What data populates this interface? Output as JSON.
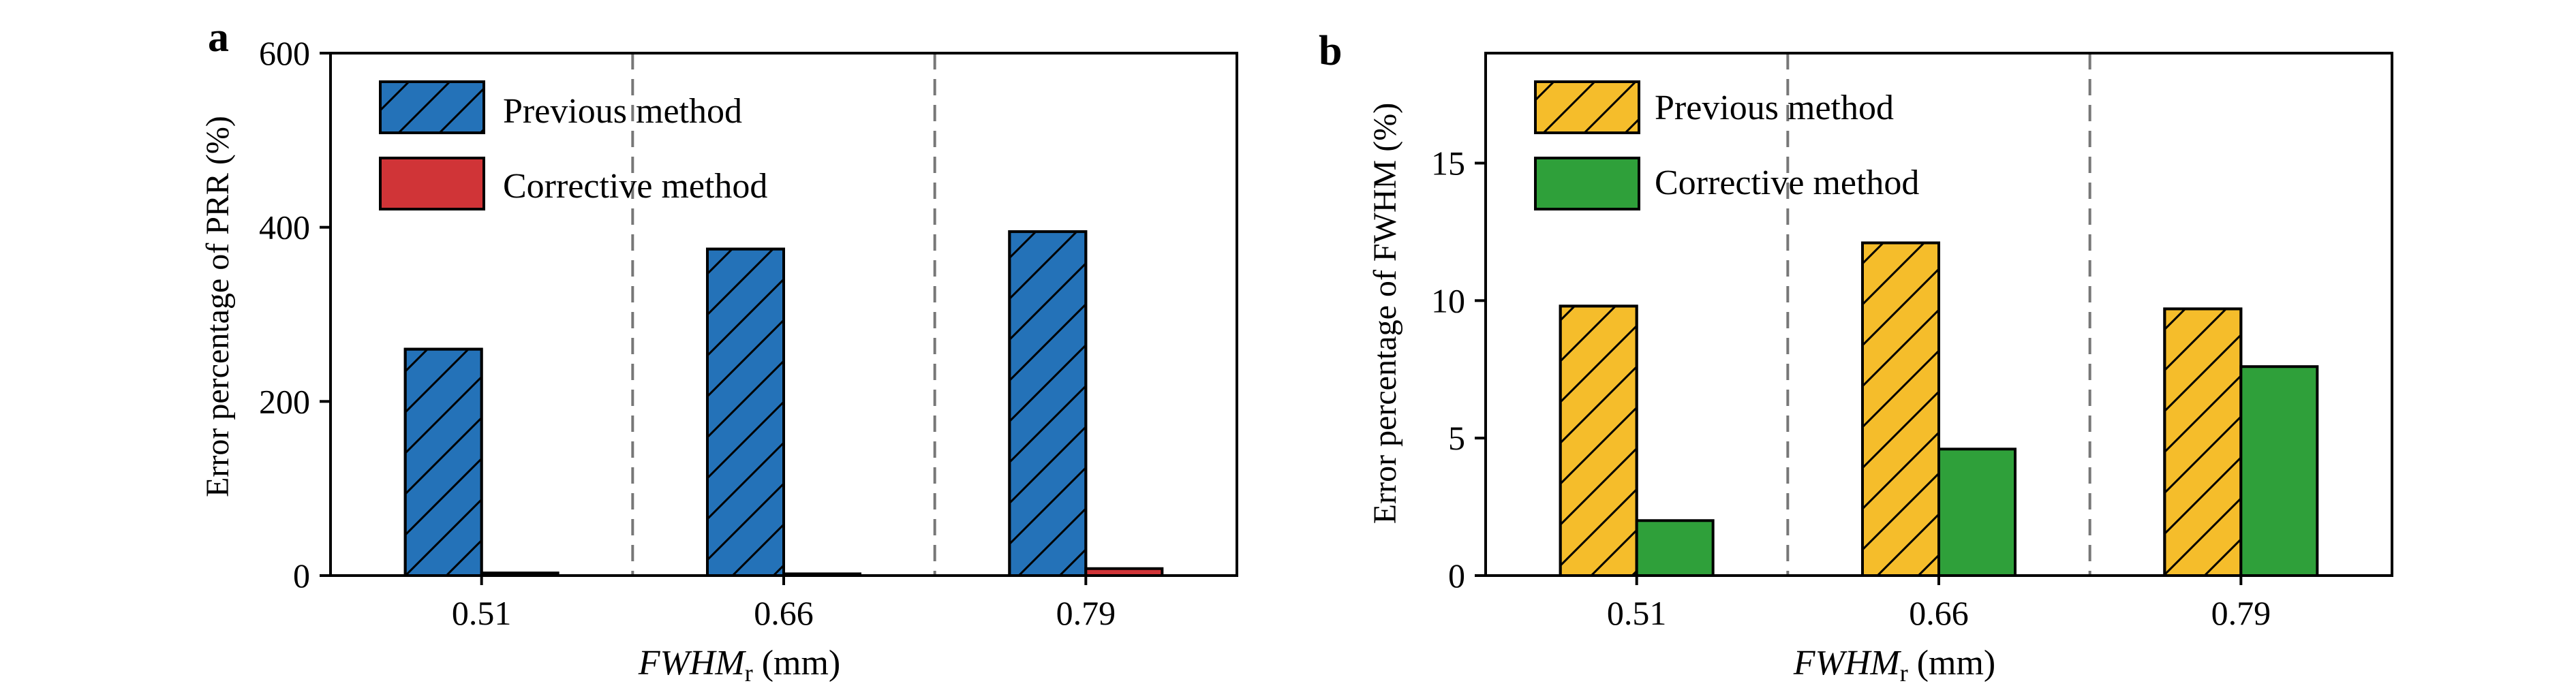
{
  "chart_data": [
    {
      "type": "bar",
      "panel_label": "a",
      "title": "",
      "xlabel_main": "FWHM",
      "xlabel_sub": "r",
      "xlabel_unit": " (mm)",
      "ylabel": "Error percentage of  PRR (%)",
      "categories": [
        "0.51",
        "0.66",
        "0.79"
      ],
      "ylim": [
        0,
        600
      ],
      "yticks": [
        0,
        200,
        400,
        600
      ],
      "grid": false,
      "separators": "dashed vertical lines between categories",
      "legend_position": "top-left",
      "series": [
        {
          "name": "Previous method",
          "color": "#2472B8",
          "hatch": true,
          "values": [
            260,
            375,
            395
          ]
        },
        {
          "name": "Corrective method",
          "color": "#D03437",
          "hatch": false,
          "values": [
            3,
            2,
            8
          ]
        }
      ]
    },
    {
      "type": "bar",
      "panel_label": "b",
      "title": "",
      "xlabel_main": "FWHM",
      "xlabel_sub": "r",
      "xlabel_unit": " (mm)",
      "ylabel": "Error percentage of  FWHM (%)",
      "categories": [
        "0.51",
        "0.66",
        "0.79"
      ],
      "ylim": [
        0,
        19
      ],
      "yticks": [
        0,
        5,
        10,
        15
      ],
      "grid": false,
      "separators": "dashed vertical lines between categories",
      "legend_position": "top-left",
      "series": [
        {
          "name": "Previous method",
          "color": "#F5BD2B",
          "hatch": true,
          "values": [
            9.8,
            12.1,
            9.7
          ]
        },
        {
          "name": "Corrective method",
          "color": "#2FA03A",
          "hatch": false,
          "values": [
            2.0,
            4.6,
            7.6
          ]
        }
      ]
    }
  ]
}
